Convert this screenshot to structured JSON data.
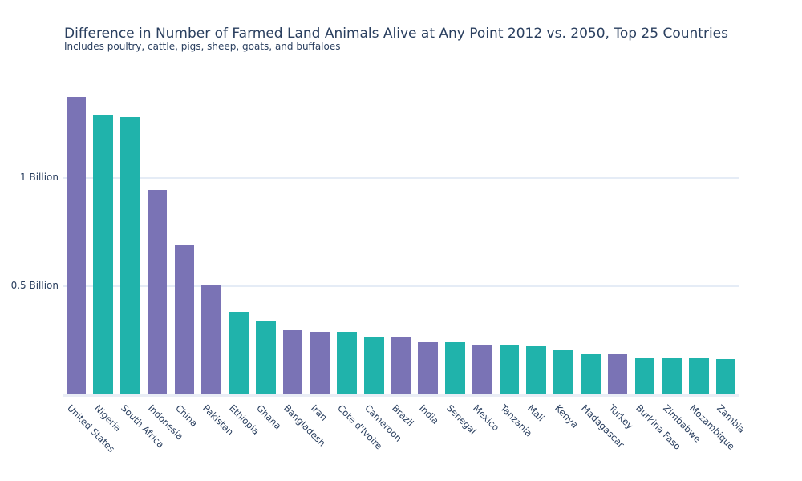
{
  "page": {
    "background_color": "#ffffff",
    "text_color": "#2a3f5f"
  },
  "chart_data": {
    "type": "bar",
    "title": "Difference in Number of Farmed Land Animals Alive at Any Point 2012 vs. 2050, Top 25 Countries",
    "subtitle": "Includes poultry, cattle, pigs, sheep, goats, and buffaloes",
    "xlabel": "",
    "ylabel": "",
    "legend": false,
    "grid": true,
    "ylim_billions": [
      0,
      1.49
    ],
    "categories": [
      "United States",
      "Nigeria",
      "South Africa",
      "Indonesia",
      "China",
      "Pakistan",
      "Ethiopia",
      "Ghana",
      "Bangladesh",
      "Iran",
      "Cote d'Ivoire",
      "Cameroon",
      "Brazil",
      "India",
      "Senegal",
      "Mexico",
      "Tanzania",
      "Mali",
      "Kenya",
      "Madagascar",
      "Turkey",
      "Burkina Faso",
      "Zimbabwe",
      "Mozambique",
      "Zambia"
    ],
    "values_billions": [
      1.375,
      1.288,
      1.283,
      0.944,
      0.688,
      0.504,
      0.383,
      0.341,
      0.295,
      0.29,
      0.289,
      0.266,
      0.265,
      0.24,
      0.239,
      0.231,
      0.23,
      0.221,
      0.203,
      0.19,
      0.189,
      0.169,
      0.168,
      0.166,
      0.164
    ],
    "bar_color_keys": [
      "purple",
      "teal",
      "teal",
      "purple",
      "purple",
      "purple",
      "teal",
      "teal",
      "purple",
      "purple",
      "teal",
      "teal",
      "purple",
      "purple",
      "teal",
      "purple",
      "teal",
      "teal",
      "teal",
      "teal",
      "purple",
      "teal",
      "teal",
      "teal",
      "teal"
    ],
    "palette": {
      "purple": "#7A73B5",
      "teal": "#20B3AB"
    },
    "yticks": [
      {
        "value": 0.5,
        "label": "0.5 Billion"
      },
      {
        "value": 1.0,
        "label": "1 Billion"
      }
    ],
    "gridline_color": "#e5ecf6",
    "axisline_color": "#e9edf5"
  }
}
